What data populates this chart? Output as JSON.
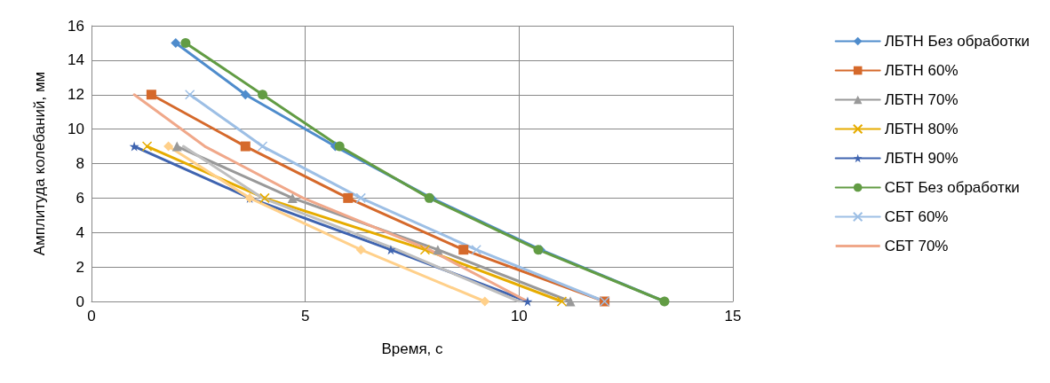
{
  "chart_data": {
    "type": "line",
    "xlabel": "Время, с",
    "ylabel": "Амплитуда колебаний, мм",
    "xlim": [
      0,
      15
    ],
    "xticks": [
      0,
      5,
      10,
      15
    ],
    "ylim": [
      0,
      16
    ],
    "yticks": [
      0,
      2,
      4,
      6,
      8,
      10,
      12,
      14,
      16
    ],
    "grid": true,
    "legend": "right",
    "series": [
      {
        "name": "ЛБТН Без обработки",
        "color": "#4f8ccc",
        "marker": "diamond",
        "x": [
          1.97,
          3.6,
          5.7,
          7.95,
          10.5,
          13.4
        ],
        "values": [
          15,
          12,
          9,
          6,
          3,
          0
        ]
      },
      {
        "name": "ЛБТН 60%",
        "color": "#d5692b",
        "marker": "square",
        "x": [
          1.4,
          3.6,
          6.0,
          8.7,
          12.0
        ],
        "values": [
          12,
          9,
          6,
          3,
          0
        ]
      },
      {
        "name": "ЛБТН 70%",
        "color": "#999999",
        "marker": "triangle",
        "x": [
          2.0,
          4.7,
          8.1,
          11.2
        ],
        "values": [
          9,
          6,
          3,
          0
        ]
      },
      {
        "name": "ЛБТН 80%",
        "color": "#e6ac00",
        "marker": "cross",
        "x": [
          1.3,
          4.05,
          7.8,
          11.0
        ],
        "values": [
          9,
          6,
          3,
          0
        ]
      },
      {
        "name": "ЛБТН 90%",
        "color": "#3f64b0",
        "marker": "star",
        "x": [
          1.0,
          3.7,
          7.0,
          10.2
        ],
        "values": [
          9,
          6,
          3,
          0
        ]
      },
      {
        "name": "СБТ Без обработки",
        "color": "#629c44",
        "marker": "circle",
        "x": [
          2.2,
          4.0,
          5.8,
          7.9,
          10.45,
          13.4
        ],
        "values": [
          15,
          12,
          9,
          6,
          3,
          0
        ]
      },
      {
        "name": "СБТ 60%",
        "color": "#9dbfe5",
        "marker": "cross",
        "x": [
          2.3,
          4.0,
          6.3,
          9.0,
          12.0
        ],
        "values": [
          12,
          9,
          6,
          3,
          0
        ]
      },
      {
        "name": "СБТ 70%",
        "color": "#f0a88a",
        "marker": "none",
        "x": [
          1.0,
          2.65,
          4.95,
          7.9,
          10.2
        ],
        "values": [
          12,
          9,
          6,
          3,
          0
        ]
      },
      {
        "color": "#ffd08a",
        "marker": "diamond",
        "x": [
          1.8,
          3.7,
          6.3,
          9.2
        ],
        "values": [
          9,
          6,
          3,
          0
        ]
      },
      {
        "color": "#bfbfbf",
        "marker": "none",
        "x": [
          2.15,
          4.0,
          7.15,
          10.0
        ],
        "values": [
          9,
          6,
          3,
          0
        ]
      }
    ]
  }
}
